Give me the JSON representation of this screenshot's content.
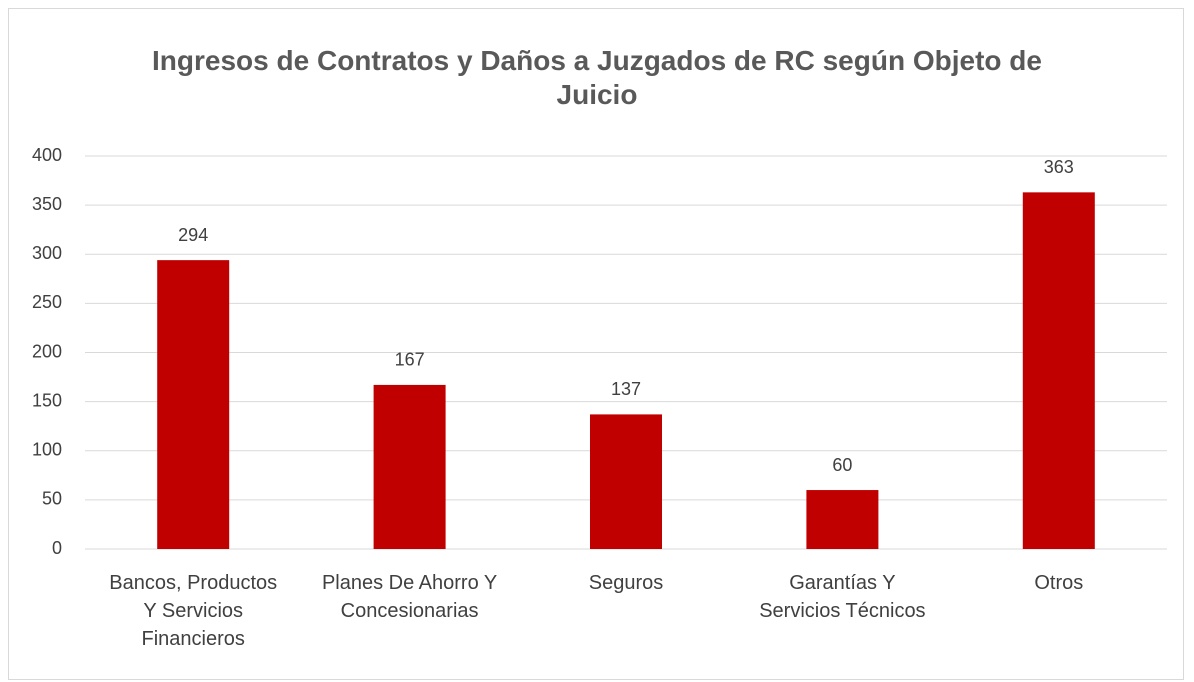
{
  "chart_data": {
    "type": "bar",
    "title": "Ingresos de Contratos y Daños a Juzgados de RC según Objeto de Juicio",
    "categories": [
      "Bancos, Productos Y Servicios Financieros",
      "Planes De Ahorro Y Concesionarias",
      "Seguros",
      "Garantías Y Servicios Técnicos",
      "Otros"
    ],
    "values": [
      294,
      167,
      137,
      60,
      363
    ],
    "color": "#c00000",
    "ylim": [
      0,
      400
    ],
    "yticks": [
      0,
      50,
      100,
      150,
      200,
      250,
      300,
      350,
      400
    ],
    "grid": true
  }
}
